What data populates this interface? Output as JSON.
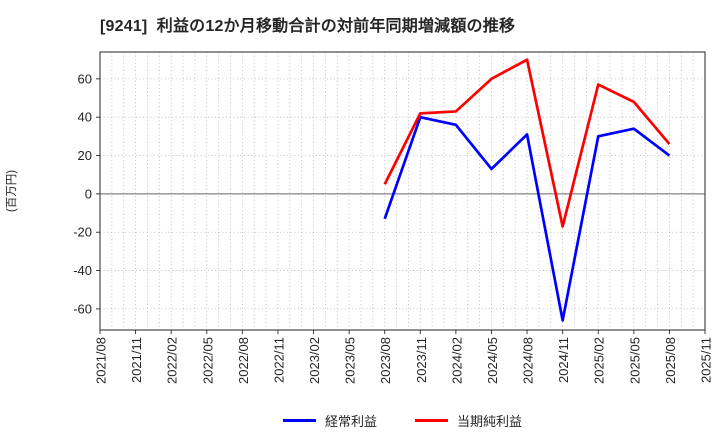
{
  "title": "[9241]  利益の12か月移動合計の対前年同期増減額の推移",
  "ylabel": "(百万円)",
  "chart_data": {
    "type": "line",
    "title": "[9241]  利益の12か月移動合計の対前年同期増減額の推移",
    "ylabel": "(百万円)",
    "x_ticklabels": [
      "2021/08",
      "2021/11",
      "2022/02",
      "2022/05",
      "2022/08",
      "2022/11",
      "2023/02",
      "2023/05",
      "2023/08",
      "2023/11",
      "2024/02",
      "2024/05",
      "2024/08",
      "2024/11",
      "2025/02",
      "2025/05",
      "2025/08",
      "2025/11"
    ],
    "yticks": [
      -60,
      -40,
      -20,
      0,
      20,
      40,
      60
    ],
    "ylim": [
      -71,
      74
    ],
    "grid": "dotted, vertical line every month, horizontal at each ytick, solid line at 0",
    "legend_position": "bottom center",
    "series": [
      {
        "name": "経常利益",
        "color": "#0000ff",
        "x": [
          "2023/08",
          "2023/11",
          "2024/02",
          "2024/05",
          "2024/08",
          "2024/11",
          "2025/02",
          "2025/05",
          "2025/08"
        ],
        "values": [
          -13,
          40,
          36,
          13,
          31,
          -66,
          30,
          34,
          20
        ]
      },
      {
        "name": "当期純利益",
        "color": "#ff0000",
        "x": [
          "2023/08",
          "2023/11",
          "2024/02",
          "2024/05",
          "2024/08",
          "2024/11",
          "2025/02",
          "2025/05",
          "2025/08"
        ],
        "values": [
          5,
          42,
          43,
          60,
          70,
          -17,
          57,
          48,
          26
        ]
      }
    ],
    "colors": {
      "grid": "#b3b3b3",
      "zero_line": "#848484",
      "axis_border": "#4a4a4a",
      "tick_text": "#262626",
      "title_text": "#262626"
    }
  }
}
